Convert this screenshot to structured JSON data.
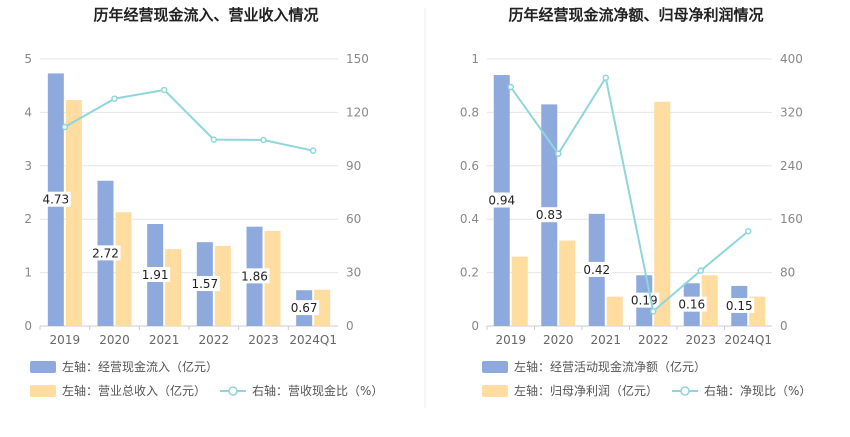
{
  "colors": {
    "bar1": "#8eaadc",
    "bar2": "#ffdca0",
    "line": "#8fd6dc",
    "grid": "#e6e6e6",
    "axis": "#cccccc",
    "divider": "#eeeeee"
  },
  "chart_data": [
    {
      "type": "bar",
      "title": "历年经营现金流入、营业收入情况",
      "categories": [
        "2019",
        "2020",
        "2021",
        "2022",
        "2023",
        "2024Q1"
      ],
      "left_axis": {
        "min": 0,
        "max": 5,
        "ticks": [
          "0",
          "1",
          "2",
          "3",
          "4",
          "5"
        ]
      },
      "right_axis": {
        "min": 0,
        "max": 150,
        "ticks": [
          "0",
          "30",
          "60",
          "90",
          "120",
          "150"
        ]
      },
      "series": [
        {
          "name": "左轴：经营现金流入（亿元）",
          "values": [
            4.73,
            2.72,
            1.91,
            1.57,
            1.86,
            0.67
          ],
          "labels": [
            "4.73",
            "2.72",
            "1.91",
            "1.57",
            "1.86",
            "0.67"
          ]
        },
        {
          "name": "左轴：营业总收入（亿元）",
          "values": [
            4.23,
            2.13,
            1.44,
            1.5,
            1.78,
            0.68
          ]
        },
        {
          "name": "右轴：营收现金比（%）",
          "values": [
            111.8,
            127.7,
            132.6,
            104.7,
            104.5,
            98.5
          ]
        }
      ],
      "grid": true,
      "legend_position": "bottom"
    },
    {
      "type": "bar",
      "title": "历年经营现金流净额、归母净利润情况",
      "categories": [
        "2019",
        "2020",
        "2021",
        "2022",
        "2023",
        "2024Q1"
      ],
      "left_axis": {
        "min": 0,
        "max": 1,
        "ticks": [
          "0",
          "0.2",
          "0.4",
          "0.6",
          "0.8",
          "1"
        ]
      },
      "right_axis": {
        "min": 0,
        "max": 400,
        "ticks": [
          "0",
          "80",
          "160",
          "240",
          "320",
          "400"
        ]
      },
      "series": [
        {
          "name": "左轴：经营活动现金流净额（亿元）",
          "values": [
            0.94,
            0.83,
            0.42,
            0.19,
            0.16,
            0.15
          ],
          "labels": [
            "0.94",
            "0.83",
            "0.42",
            "0.19",
            "0.16",
            "0.15"
          ]
        },
        {
          "name": "左轴：归母净利润（亿元）",
          "values": [
            0.26,
            0.32,
            0.11,
            0.84,
            0.19,
            0.11
          ]
        },
        {
          "name": "右轴：净现比（%）",
          "values": [
            358,
            258,
            372,
            22,
            83,
            142
          ]
        }
      ],
      "grid": true,
      "legend_position": "bottom"
    }
  ]
}
